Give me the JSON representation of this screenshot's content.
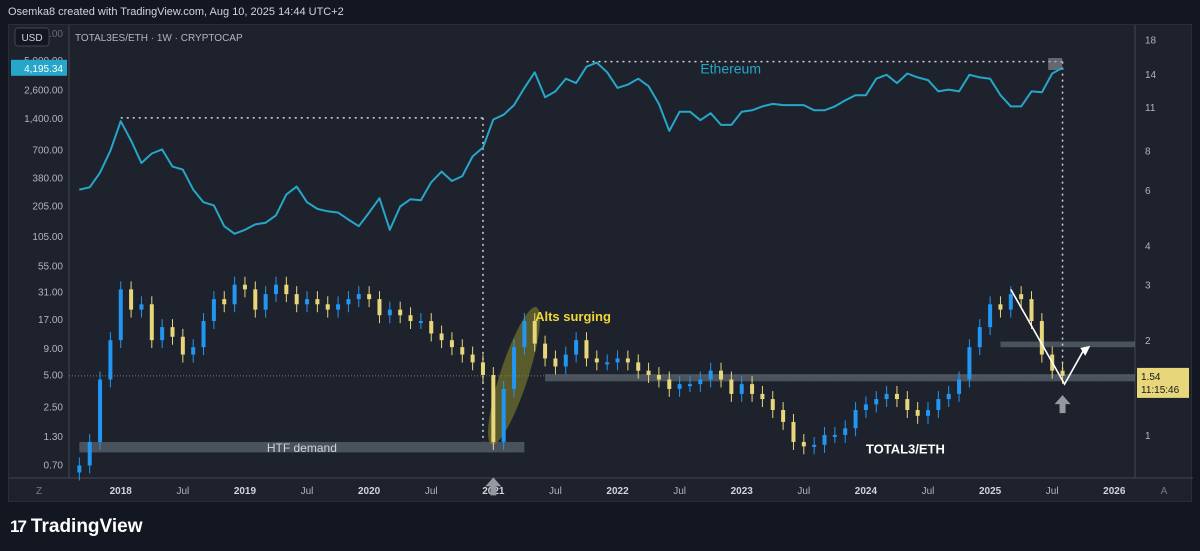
{
  "header": {
    "caption": "Osemka8 created with TradingView.com, Aug 10, 2025 14:44 UTC+2"
  },
  "footer": {
    "logo_text": "TradingView",
    "logo_mark": "17"
  },
  "colors": {
    "background": "#1e222d",
    "ethereum_line": "#26a6c8",
    "candle_up": "#2196f3",
    "candle_down": "#e8d67a",
    "zone": "#5d6671",
    "highlight_ellipse": "#8a8a2e",
    "annotation_yellow": "#f0d53a",
    "arrow_gray": "#9598a1",
    "price_tag": "#26a6c8"
  },
  "chart_data": {
    "type": "line",
    "symbol_caption": "TOTAL3ES/ETH · 1W · CRYPTOCAP",
    "currency_button": "USD",
    "time_axis": {
      "range": [
        "2017-08",
        "2026-03"
      ],
      "ticks": [
        {
          "label": "2018",
          "date": "2018-01",
          "bold": true
        },
        {
          "label": "Jul",
          "date": "2018-07"
        },
        {
          "label": "2019",
          "date": "2019-01",
          "bold": true
        },
        {
          "label": "Jul",
          "date": "2019-07"
        },
        {
          "label": "2020",
          "date": "2020-01",
          "bold": true
        },
        {
          "label": "Jul",
          "date": "2020-07"
        },
        {
          "label": "2021",
          "date": "2021-01",
          "bold": true
        },
        {
          "label": "Jul",
          "date": "2021-07"
        },
        {
          "label": "2022",
          "date": "2022-01",
          "bold": true
        },
        {
          "label": "Jul",
          "date": "2022-07"
        },
        {
          "label": "2023",
          "date": "2023-01",
          "bold": true
        },
        {
          "label": "Jul",
          "date": "2023-07"
        },
        {
          "label": "2024",
          "date": "2024-01",
          "bold": true
        },
        {
          "label": "Jul",
          "date": "2024-07"
        },
        {
          "label": "2025",
          "date": "2025-01",
          "bold": true
        },
        {
          "label": "Jul",
          "date": "2025-07"
        },
        {
          "label": "2026",
          "date": "2026-01",
          "bold": true
        }
      ],
      "left_corner": "Z",
      "right_corner": "A"
    },
    "left_axis": {
      "scale": "log",
      "currency": "USD",
      "ticks": [
        "0.70",
        "1.30",
        "2.50",
        "5.00",
        "9.00",
        "17.00",
        "31.00",
        "55.00",
        "105.00",
        "205.00",
        "380.00",
        "700.00",
        "1,400.00",
        "2,600.00",
        "5,000.00"
      ],
      "partial_top_label": "9,000.00",
      "price_tag": "4,195.34",
      "price_tag_value": 4195.34
    },
    "right_axis": {
      "scale": "log",
      "ticks": [
        "1",
        "2",
        "3",
        "4",
        "6",
        "8",
        "11",
        "14",
        "18"
      ],
      "price_tag": "1.54",
      "price_tag_value": 1.54,
      "countdown": "11:15:46"
    },
    "annotations": {
      "ethereum_label": "Ethereum",
      "total3_label": "TOTAL3/ETH",
      "alts_label": "Alts surging",
      "htf_label": "HTF demand"
    },
    "series": [
      {
        "name": "Ethereum",
        "axis": "left",
        "type": "line",
        "points": [
          [
            "2017-09",
            290
          ],
          [
            "2017-10",
            305
          ],
          [
            "2017-11",
            420
          ],
          [
            "2017-12",
            680
          ],
          [
            "2018-01",
            1300
          ],
          [
            "2018-02",
            850
          ],
          [
            "2018-03",
            520
          ],
          [
            "2018-04",
            640
          ],
          [
            "2018-05",
            700
          ],
          [
            "2018-06",
            480
          ],
          [
            "2018-07",
            450
          ],
          [
            "2018-08",
            290
          ],
          [
            "2018-09",
            220
          ],
          [
            "2018-10",
            205
          ],
          [
            "2018-11",
            130
          ],
          [
            "2018-12",
            110
          ],
          [
            "2019-01",
            120
          ],
          [
            "2019-02",
            135
          ],
          [
            "2019-03",
            140
          ],
          [
            "2019-04",
            165
          ],
          [
            "2019-05",
            260
          ],
          [
            "2019-06",
            310
          ],
          [
            "2019-07",
            220
          ],
          [
            "2019-08",
            190
          ],
          [
            "2019-09",
            180
          ],
          [
            "2019-10",
            175
          ],
          [
            "2019-11",
            150
          ],
          [
            "2019-12",
            130
          ],
          [
            "2020-01",
            175
          ],
          [
            "2020-02",
            240
          ],
          [
            "2020-03",
            120
          ],
          [
            "2020-04",
            200
          ],
          [
            "2020-05",
            235
          ],
          [
            "2020-06",
            230
          ],
          [
            "2020-07",
            340
          ],
          [
            "2020-08",
            430
          ],
          [
            "2020-09",
            350
          ],
          [
            "2020-10",
            390
          ],
          [
            "2020-11",
            600
          ],
          [
            "2020-12",
            730
          ],
          [
            "2021-01",
            1350
          ],
          [
            "2021-02",
            1500
          ],
          [
            "2021-03",
            1850
          ],
          [
            "2021-04",
            2700
          ],
          [
            "2021-05",
            3800
          ],
          [
            "2021-06",
            2200
          ],
          [
            "2021-07",
            2500
          ],
          [
            "2021-08",
            3300
          ],
          [
            "2021-09",
            3000
          ],
          [
            "2021-10",
            4300
          ],
          [
            "2021-11",
            4700
          ],
          [
            "2021-12",
            3800
          ],
          [
            "2022-01",
            2700
          ],
          [
            "2022-02",
            2900
          ],
          [
            "2022-03",
            3300
          ],
          [
            "2022-04",
            2800
          ],
          [
            "2022-05",
            1900
          ],
          [
            "2022-06",
            1050
          ],
          [
            "2022-07",
            1600
          ],
          [
            "2022-08",
            1600
          ],
          [
            "2022-09",
            1330
          ],
          [
            "2022-10",
            1550
          ],
          [
            "2022-11",
            1200
          ],
          [
            "2022-12",
            1200
          ],
          [
            "2023-01",
            1600
          ],
          [
            "2023-02",
            1650
          ],
          [
            "2023-03",
            1800
          ],
          [
            "2023-04",
            1900
          ],
          [
            "2023-05",
            1850
          ],
          [
            "2023-06",
            1850
          ],
          [
            "2023-07",
            1850
          ],
          [
            "2023-08",
            1650
          ],
          [
            "2023-09",
            1650
          ],
          [
            "2023-10",
            1800
          ],
          [
            "2023-11",
            2050
          ],
          [
            "2023-12",
            2300
          ],
          [
            "2024-01",
            2300
          ],
          [
            "2024-02",
            3300
          ],
          [
            "2024-03",
            3600
          ],
          [
            "2024-04",
            3000
          ],
          [
            "2024-05",
            3700
          ],
          [
            "2024-06",
            3400
          ],
          [
            "2024-07",
            3200
          ],
          [
            "2024-08",
            2500
          ],
          [
            "2024-09",
            2600
          ],
          [
            "2024-10",
            2500
          ],
          [
            "2024-11",
            3600
          ],
          [
            "2024-12",
            3400
          ],
          [
            "2025-01",
            3300
          ],
          [
            "2025-02",
            2300
          ],
          [
            "2025-03",
            1800
          ],
          [
            "2025-04",
            1800
          ],
          [
            "2025-05",
            2500
          ],
          [
            "2025-06",
            2450
          ],
          [
            "2025-07",
            3700
          ],
          [
            "2025-08",
            4195.34
          ]
        ]
      },
      {
        "name": "TOTAL3ES/ETH",
        "axis": "right",
        "type": "candle_close",
        "points": [
          [
            "2017-09",
            0.8
          ],
          [
            "2017-10",
            0.95
          ],
          [
            "2017-11",
            1.5
          ],
          [
            "2017-12",
            2.0
          ],
          [
            "2018-01",
            2.9
          ],
          [
            "2018-02",
            2.5
          ],
          [
            "2018-03",
            2.6
          ],
          [
            "2018-04",
            2.0
          ],
          [
            "2018-05",
            2.2
          ],
          [
            "2018-06",
            2.05
          ],
          [
            "2018-07",
            1.8
          ],
          [
            "2018-08",
            1.9
          ],
          [
            "2018-09",
            2.3
          ],
          [
            "2018-10",
            2.7
          ],
          [
            "2018-11",
            2.6
          ],
          [
            "2018-12",
            3.0
          ],
          [
            "2019-01",
            2.9
          ],
          [
            "2019-02",
            2.5
          ],
          [
            "2019-03",
            2.8
          ],
          [
            "2019-04",
            3.0
          ],
          [
            "2019-05",
            2.8
          ],
          [
            "2019-06",
            2.6
          ],
          [
            "2019-07",
            2.7
          ],
          [
            "2019-08",
            2.6
          ],
          [
            "2019-09",
            2.5
          ],
          [
            "2019-10",
            2.6
          ],
          [
            "2019-11",
            2.7
          ],
          [
            "2019-12",
            2.8
          ],
          [
            "2020-01",
            2.7
          ],
          [
            "2020-02",
            2.4
          ],
          [
            "2020-03",
            2.5
          ],
          [
            "2020-04",
            2.4
          ],
          [
            "2020-05",
            2.3
          ],
          [
            "2020-06",
            2.3
          ],
          [
            "2020-07",
            2.1
          ],
          [
            "2020-08",
            2.0
          ],
          [
            "2020-09",
            1.9
          ],
          [
            "2020-10",
            1.8
          ],
          [
            "2020-11",
            1.7
          ],
          [
            "2020-12",
            1.55
          ],
          [
            "2021-01",
            0.95
          ],
          [
            "2021-02",
            1.4
          ],
          [
            "2021-03",
            1.9
          ],
          [
            "2021-04",
            2.3
          ],
          [
            "2021-05",
            1.95
          ],
          [
            "2021-06",
            1.75
          ],
          [
            "2021-07",
            1.65
          ],
          [
            "2021-08",
            1.8
          ],
          [
            "2021-09",
            2.0
          ],
          [
            "2021-10",
            1.75
          ],
          [
            "2021-11",
            1.7
          ],
          [
            "2021-12",
            1.7
          ],
          [
            "2022-01",
            1.75
          ],
          [
            "2022-02",
            1.7
          ],
          [
            "2022-03",
            1.6
          ],
          [
            "2022-04",
            1.55
          ],
          [
            "2022-05",
            1.5
          ],
          [
            "2022-06",
            1.4
          ],
          [
            "2022-07",
            1.45
          ],
          [
            "2022-08",
            1.45
          ],
          [
            "2022-09",
            1.5
          ],
          [
            "2022-10",
            1.6
          ],
          [
            "2022-11",
            1.5
          ],
          [
            "2022-12",
            1.35
          ],
          [
            "2023-01",
            1.45
          ],
          [
            "2023-02",
            1.35
          ],
          [
            "2023-03",
            1.3
          ],
          [
            "2023-04",
            1.2
          ],
          [
            "2023-05",
            1.1
          ],
          [
            "2023-06",
            0.95
          ],
          [
            "2023-07",
            0.92
          ],
          [
            "2023-08",
            0.93
          ],
          [
            "2023-09",
            1.0
          ],
          [
            "2023-10",
            1.0
          ],
          [
            "2023-11",
            1.05
          ],
          [
            "2023-12",
            1.2
          ],
          [
            "2024-01",
            1.25
          ],
          [
            "2024-02",
            1.3
          ],
          [
            "2024-03",
            1.35
          ],
          [
            "2024-04",
            1.3
          ],
          [
            "2024-05",
            1.2
          ],
          [
            "2024-06",
            1.15
          ],
          [
            "2024-07",
            1.2
          ],
          [
            "2024-08",
            1.3
          ],
          [
            "2024-09",
            1.35
          ],
          [
            "2024-10",
            1.5
          ],
          [
            "2024-11",
            1.9
          ],
          [
            "2024-12",
            2.2
          ],
          [
            "2025-01",
            2.6
          ],
          [
            "2025-02",
            2.5
          ],
          [
            "2025-03",
            2.8
          ],
          [
            "2025-04",
            2.7
          ],
          [
            "2025-05",
            2.3
          ],
          [
            "2025-06",
            1.8
          ],
          [
            "2025-07",
            1.6
          ],
          [
            "2025-08",
            1.54
          ]
        ]
      }
    ],
    "zones": [
      {
        "name": "HTF demand",
        "axis": "right",
        "from": "2017-09",
        "to": "2021-04",
        "low": 0.88,
        "high": 0.95
      },
      {
        "name": "support",
        "axis": "right",
        "from": "2021-06",
        "to": "2026-03",
        "low": 1.48,
        "high": 1.56
      },
      {
        "name": "resistance",
        "axis": "right",
        "from": "2025-02",
        "to": "2026-03",
        "low": 1.9,
        "high": 1.98
      }
    ],
    "ethereum_ath_levels": [
      {
        "from": "2018-01",
        "to": "2020-12",
        "value": 1400
      },
      {
        "from": "2021-10",
        "to": "2025-08",
        "value": 4800
      }
    ]
  }
}
